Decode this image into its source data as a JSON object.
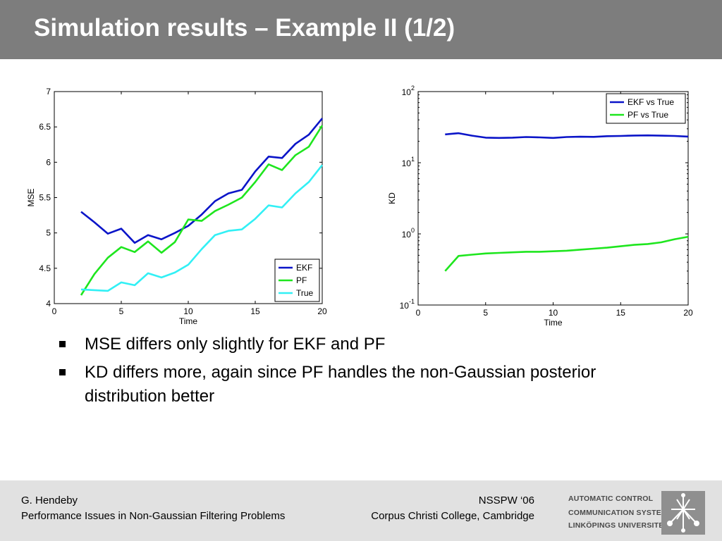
{
  "slide": {
    "title": "Simulation results – Example II (1/2)",
    "bullets": [
      "MSE differs only slightly for EKF and PF",
      "KD differs more, again since PF handles the non-Gaussian posterior distribution better"
    ]
  },
  "footer": {
    "author": "G. Hendeby",
    "talk_title": "Performance Issues in Non-Gaussian Filtering Problems",
    "event": "NSSPW ‘06",
    "venue": "Corpus Christi College, Cambridge",
    "logo_lines": [
      "AUTOMATIC CONTROL",
      "COMMUNICATION SYSTEMS",
      "LINKÖPINGS UNIVERSITET"
    ],
    "logo_icon": "linkoping-university-emblem-icon"
  },
  "colors": {
    "title_bar": "#7d7d7d",
    "footer_bg": "#e1e1e1",
    "blue": "#0a14c8",
    "green": "#1ee61e",
    "cyan": "#32f0f5"
  },
  "chart_data": [
    {
      "type": "line",
      "xlabel": "Time",
      "ylabel": "MSE",
      "xlim": [
        0,
        20
      ],
      "ylim": [
        4,
        7
      ],
      "xticks": [
        0,
        5,
        10,
        15,
        20
      ],
      "yticks": [
        4,
        4.5,
        5,
        5.5,
        6,
        6.5,
        7
      ],
      "ytick_labels": [
        "4",
        "4.5",
        "5",
        "5.5",
        "6",
        "6.5",
        "7"
      ],
      "grid": false,
      "legend": "bottom-right",
      "x": [
        2,
        3,
        4,
        5,
        6,
        7,
        8,
        9,
        10,
        11,
        12,
        13,
        14,
        15,
        16,
        17,
        18,
        19,
        20
      ],
      "series": [
        {
          "name": "EKF",
          "color": "#0a14c8",
          "values": [
            5.3,
            5.15,
            4.99,
            5.06,
            4.86,
            4.97,
            4.91,
            5.0,
            5.1,
            5.26,
            5.45,
            5.56,
            5.61,
            5.87,
            6.08,
            6.06,
            6.26,
            6.39,
            6.62
          ]
        },
        {
          "name": "PF",
          "color": "#1ee61e",
          "values": [
            4.12,
            4.42,
            4.65,
            4.8,
            4.73,
            4.88,
            4.72,
            4.87,
            5.19,
            5.17,
            5.31,
            5.4,
            5.5,
            5.72,
            5.97,
            5.89,
            6.1,
            6.22,
            6.52
          ]
        },
        {
          "name": "True",
          "color": "#32f0f5",
          "values": [
            4.2,
            4.19,
            4.18,
            4.3,
            4.26,
            4.43,
            4.37,
            4.44,
            4.55,
            4.77,
            4.97,
            5.03,
            5.05,
            5.2,
            5.39,
            5.36,
            5.56,
            5.72,
            5.96
          ]
        }
      ]
    },
    {
      "type": "line",
      "xlabel": "Time",
      "ylabel": "KD",
      "xlim": [
        0,
        20
      ],
      "ylim": [
        0.1,
        100
      ],
      "yscale": "log",
      "xticks": [
        0,
        5,
        10,
        15,
        20
      ],
      "yticks": [
        0.1,
        1,
        10,
        100
      ],
      "ytick_labels": [
        [
          "10",
          "-1"
        ],
        [
          "10",
          "0"
        ],
        [
          "10",
          "1"
        ],
        [
          "10",
          "2"
        ]
      ],
      "grid": false,
      "legend": "top-right",
      "x": [
        2,
        3,
        4,
        5,
        6,
        7,
        8,
        9,
        10,
        11,
        12,
        13,
        14,
        15,
        16,
        17,
        18,
        19,
        20
      ],
      "series": [
        {
          "name": "EKF vs True",
          "color": "#0a14c8",
          "values": [
            25,
            26,
            24,
            22.5,
            22.3,
            22.5,
            23,
            22.7,
            22.3,
            23,
            23.2,
            23.1,
            23.6,
            23.8,
            24.1,
            24.2,
            24,
            23.8,
            23.3
          ]
        },
        {
          "name": "PF vs True",
          "color": "#1ee61e",
          "values": [
            0.3,
            0.49,
            0.51,
            0.53,
            0.54,
            0.55,
            0.56,
            0.56,
            0.57,
            0.58,
            0.6,
            0.62,
            0.64,
            0.67,
            0.7,
            0.72,
            0.76,
            0.84,
            0.91
          ]
        }
      ]
    }
  ]
}
